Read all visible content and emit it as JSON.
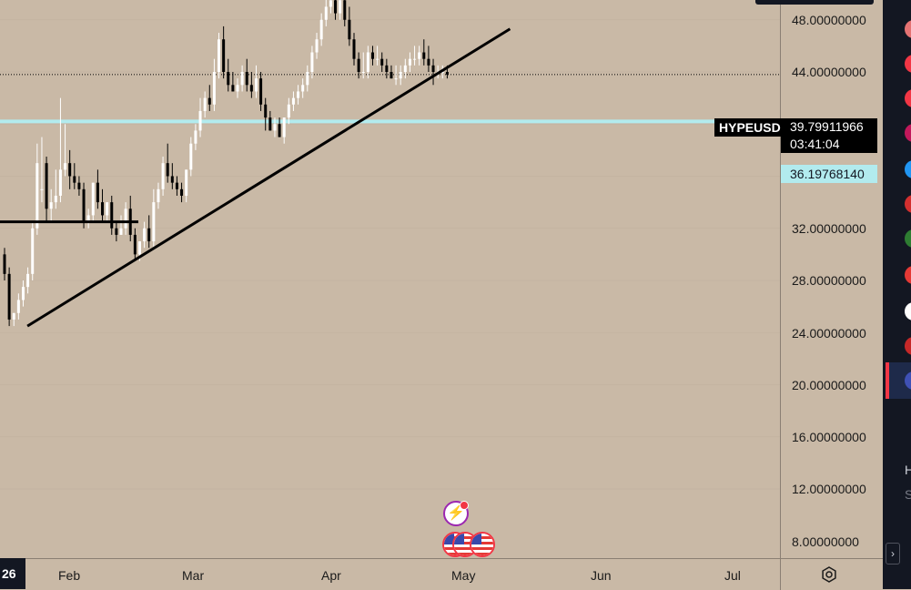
{
  "symbol": "HYPEUSD",
  "last_price": "39.79911966",
  "countdown": "03:41:04",
  "level_price": "36.19768140",
  "cursor_date_label": "26",
  "price_axis": {
    "ticks": [
      "48.00000000",
      "44.00000000",
      "32.00000000",
      "28.00000000",
      "24.00000000",
      "20.00000000",
      "16.00000000",
      "12.00000000",
      "8.00000000"
    ]
  },
  "time_axis": {
    "labels": [
      "Feb",
      "Mar",
      "Apr",
      "May",
      "Jun",
      "Jul"
    ]
  },
  "colors": {
    "background": "#c9b9a6",
    "up_candle": "#ffffff",
    "down_candle": "#000000",
    "trendline": "#000000",
    "horizontal_level": "#b2ebee",
    "price_badge": "#000000"
  },
  "icons": [
    "gear-icon",
    "flash-event-icon",
    "us-flag-icon",
    "chevron-right-icon"
  ],
  "side_panel": {
    "text_1": "H",
    "text_2": "S"
  },
  "chart_data": {
    "type": "candlestick",
    "ylim": [
      6.5,
      50
    ],
    "horizontal_level": 36.1977,
    "last_price": 39.7991,
    "support_levels": [
      28.5
    ],
    "x": [
      "Jan-26",
      "Jan-27",
      "Jan-28",
      "Jan-29",
      "Jan-30",
      "Jan-31",
      "Feb-01",
      "Feb-02",
      "Feb-03",
      "Feb-04",
      "Feb-05",
      "Feb-06",
      "Feb-07",
      "Feb-08",
      "Feb-09",
      "Feb-10",
      "Feb-11",
      "Feb-12",
      "Feb-13",
      "Feb-14",
      "Feb-15",
      "Feb-16",
      "Feb-17",
      "Feb-18",
      "Feb-19",
      "Feb-20",
      "Feb-21",
      "Feb-22",
      "Feb-23",
      "Feb-24",
      "Feb-25",
      "Feb-26",
      "Feb-27",
      "Feb-28",
      "Mar-01",
      "Mar-02",
      "Mar-03",
      "Mar-04",
      "Mar-05",
      "Mar-06",
      "Mar-07",
      "Mar-08",
      "Mar-09",
      "Mar-10",
      "Mar-11",
      "Mar-12",
      "Mar-13",
      "Mar-14",
      "Mar-15",
      "Mar-16",
      "Mar-17",
      "Mar-18",
      "Mar-19",
      "Mar-20",
      "Mar-21",
      "Mar-22",
      "Mar-23",
      "Mar-24",
      "Mar-25",
      "Mar-26",
      "Mar-27",
      "Mar-28",
      "Mar-29",
      "Mar-30",
      "Mar-31",
      "Apr-01",
      "Apr-02",
      "Apr-03",
      "Apr-04",
      "Apr-05",
      "Apr-06",
      "Apr-07",
      "Apr-08",
      "Apr-09",
      "Apr-10",
      "Apr-11",
      "Apr-12",
      "Apr-13",
      "Apr-14",
      "Apr-15",
      "Apr-16",
      "Apr-17",
      "Apr-18",
      "Apr-19",
      "Apr-20",
      "Apr-21",
      "Apr-22",
      "Apr-23",
      "Apr-24",
      "Apr-25",
      "Apr-26",
      "Apr-27",
      "Apr-28",
      "Apr-29",
      "Apr-30",
      "May-01"
    ],
    "open": [
      26.0,
      24.5,
      21.0,
      21.5,
      22.5,
      23.5,
      24.5,
      28.0,
      31.0,
      33.0,
      29.5,
      30.0,
      30.5,
      32.5,
      33.0,
      32.0,
      31.5,
      31.0,
      28.5,
      29.0,
      31.5,
      30.0,
      29.0,
      30.0,
      28.0,
      27.5,
      28.0,
      29.5,
      27.5,
      26.0,
      27.0,
      28.0,
      27.0,
      30.0,
      31.0,
      33.0,
      32.0,
      31.5,
      31.0,
      30.5,
      32.5,
      34.5,
      35.5,
      37.0,
      38.0,
      37.5,
      40.0,
      42.5,
      40.0,
      39.0,
      38.5,
      39.0,
      40.0,
      39.0,
      38.5,
      39.5,
      37.5,
      36.5,
      35.5,
      36.0,
      35.0,
      36.5,
      37.5,
      38.0,
      38.5,
      39.0,
      40.0,
      41.5,
      42.5,
      44.0,
      45.0,
      45.5,
      44.5,
      45.5,
      44.0,
      42.5,
      41.0,
      40.0,
      40.0,
      41.5,
      41.0,
      41.0,
      40.5,
      40.0,
      39.5,
      39.5,
      40.0,
      40.5,
      41.0,
      41.0,
      41.5,
      41.0,
      40.5,
      40.0,
      40.0,
      40.0
    ],
    "high": [
      26.5,
      25.0,
      21.5,
      23.0,
      24.0,
      25.0,
      28.5,
      34.5,
      35.0,
      33.5,
      31.0,
      32.5,
      38.0,
      36.0,
      34.0,
      33.0,
      32.0,
      31.5,
      29.5,
      31.5,
      32.5,
      31.0,
      30.0,
      30.5,
      28.5,
      29.0,
      30.0,
      30.5,
      28.0,
      27.0,
      28.5,
      29.0,
      31.0,
      31.5,
      33.5,
      34.5,
      33.0,
      32.0,
      31.5,
      32.5,
      35.0,
      36.0,
      38.0,
      38.5,
      39.0,
      41.0,
      43.0,
      43.5,
      41.0,
      40.0,
      39.5,
      40.5,
      41.0,
      40.0,
      40.5,
      40.0,
      38.0,
      37.0,
      36.5,
      36.5,
      36.5,
      38.0,
      38.5,
      39.0,
      39.5,
      40.5,
      42.0,
      43.0,
      44.5,
      46.0,
      45.5,
      46.0,
      46.0,
      46.0,
      45.0,
      43.0,
      41.5,
      41.5,
      42.0,
      42.0,
      42.0,
      41.5,
      41.0,
      40.5,
      40.5,
      40.5,
      41.0,
      41.5,
      42.0,
      42.0,
      42.5,
      42.0,
      41.0,
      40.5,
      40.5,
      40.5
    ],
    "low": [
      24.0,
      20.5,
      20.5,
      21.0,
      22.0,
      23.0,
      24.0,
      27.5,
      30.0,
      28.5,
      28.5,
      29.5,
      30.0,
      32.0,
      31.0,
      31.0,
      30.5,
      28.0,
      28.0,
      28.5,
      29.5,
      28.5,
      28.5,
      27.5,
      27.0,
      27.5,
      27.5,
      27.0,
      25.5,
      25.5,
      26.5,
      26.5,
      26.5,
      29.5,
      30.5,
      31.5,
      31.0,
      30.5,
      30.0,
      30.0,
      32.0,
      34.0,
      35.0,
      36.5,
      37.0,
      37.0,
      39.5,
      39.5,
      38.5,
      38.5,
      38.0,
      38.5,
      38.5,
      38.0,
      38.0,
      37.0,
      35.5,
      35.5,
      35.0,
      35.0,
      34.5,
      36.0,
      37.0,
      37.5,
      38.0,
      38.5,
      39.5,
      41.0,
      42.0,
      43.5,
      44.5,
      44.0,
      44.0,
      43.5,
      42.0,
      40.5,
      39.5,
      39.5,
      39.5,
      40.5,
      40.5,
      40.0,
      39.5,
      39.5,
      39.0,
      39.0,
      39.5,
      40.0,
      40.5,
      40.5,
      40.5,
      40.0,
      39.0,
      39.5,
      39.5,
      39.5
    ],
    "close": [
      24.5,
      21.0,
      21.5,
      22.5,
      23.5,
      24.5,
      28.0,
      33.0,
      31.0,
      29.5,
      30.0,
      30.5,
      32.5,
      33.0,
      32.0,
      31.5,
      31.0,
      28.5,
      29.0,
      31.5,
      30.0,
      29.0,
      30.0,
      28.0,
      27.5,
      28.0,
      29.5,
      27.5,
      26.0,
      27.0,
      28.0,
      27.0,
      30.0,
      31.0,
      33.0,
      32.0,
      31.5,
      31.0,
      30.5,
      32.5,
      34.5,
      35.5,
      37.0,
      38.0,
      37.5,
      40.0,
      42.5,
      40.0,
      39.0,
      38.5,
      39.0,
      40.0,
      39.0,
      38.5,
      39.5,
      37.5,
      36.5,
      35.5,
      36.0,
      35.0,
      36.5,
      37.5,
      38.0,
      38.5,
      39.0,
      40.0,
      41.5,
      42.5,
      44.0,
      45.0,
      45.5,
      44.5,
      45.5,
      44.0,
      42.5,
      41.0,
      40.0,
      40.0,
      41.5,
      41.0,
      41.0,
      40.5,
      40.0,
      39.5,
      39.5,
      40.0,
      40.5,
      41.0,
      41.0,
      41.5,
      41.0,
      40.5,
      40.0,
      40.0,
      40.0,
      39.8
    ]
  }
}
